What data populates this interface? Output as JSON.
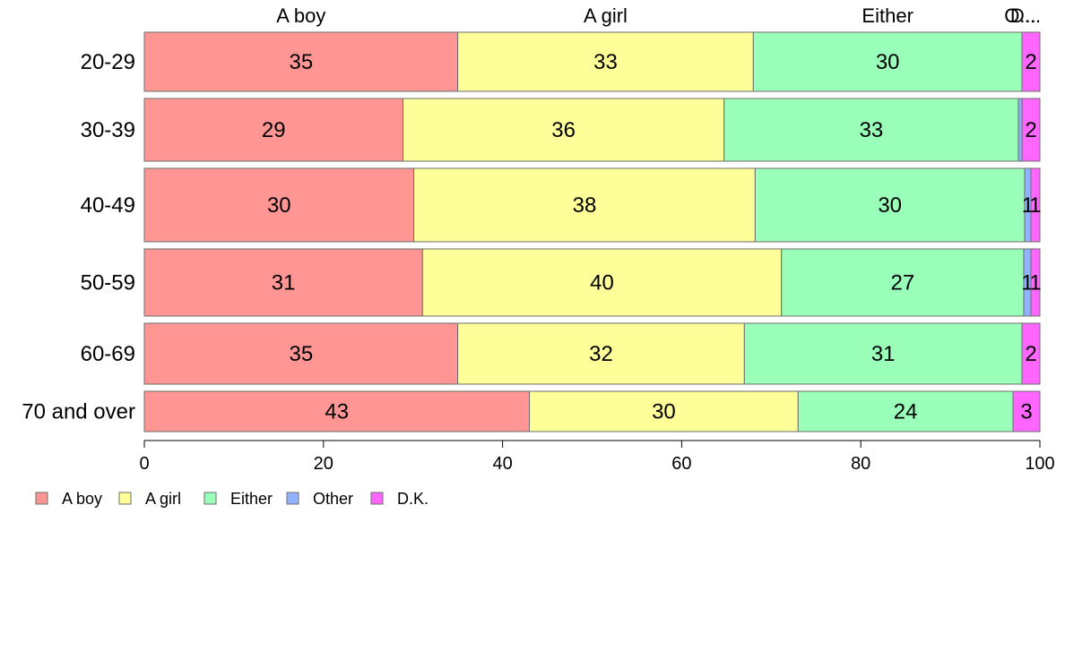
{
  "chart_data": {
    "type": "bar",
    "orientation": "horizontal",
    "stacked": true,
    "categories": [
      "20-29",
      "30-39",
      "40-49",
      "50-59",
      "60-69",
      "70 and over"
    ],
    "series": [
      {
        "name": "A boy",
        "color": "#ff9693",
        "values": [
          35,
          29,
          30,
          31,
          35,
          43
        ]
      },
      {
        "name": "A girl",
        "color": "#ffff99",
        "values": [
          33,
          36,
          38,
          40,
          32,
          30
        ]
      },
      {
        "name": "Either",
        "color": "#99ffb9",
        "values": [
          30,
          33,
          30,
          27,
          31,
          24
        ]
      },
      {
        "name": "Other",
        "color": "#91b3ff",
        "values": [
          0,
          0.4,
          0.7,
          0.8,
          0,
          0
        ]
      },
      {
        "name": "D.K.",
        "color": "#ff66ff",
        "values": [
          2,
          2,
          1,
          1,
          2,
          3
        ]
      }
    ],
    "segment_labels": [
      [
        "35",
        "33",
        "30",
        "",
        "2"
      ],
      [
        "29",
        "36",
        "33",
        "",
        "2"
      ],
      [
        "30",
        "38",
        "30",
        "1",
        "1"
      ],
      [
        "31",
        "40",
        "27",
        "1",
        "1"
      ],
      [
        "35",
        "32",
        "31",
        "",
        "2"
      ],
      [
        "43",
        "30",
        "24",
        "",
        "3"
      ]
    ],
    "top_labels": [
      "A boy",
      "A girl",
      "Either",
      "O...",
      "D..."
    ],
    "xlim": [
      0,
      100
    ],
    "xticks": [
      0,
      20,
      40,
      60,
      80,
      100
    ],
    "grid": false,
    "legend_position": "bottom-left"
  }
}
